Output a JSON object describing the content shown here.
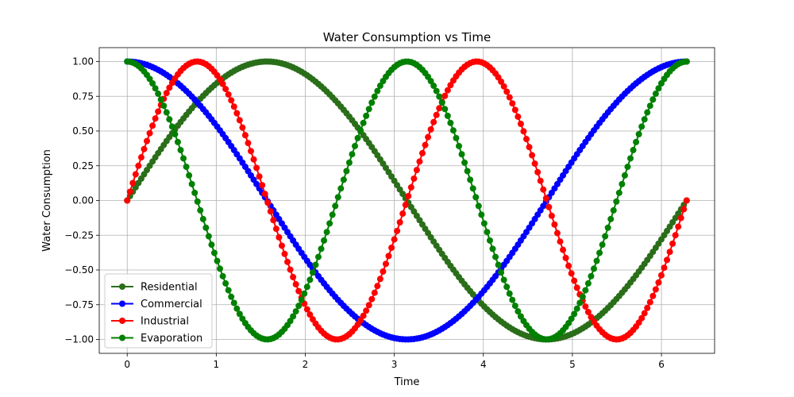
{
  "chart_data": {
    "type": "line",
    "title": "Water Consumption vs Time",
    "xlabel": "Time",
    "ylabel": "Water Consumption",
    "xlim": [
      -0.314,
      6.597
    ],
    "ylim": [
      -1.1,
      1.1
    ],
    "x_ticks": [
      0,
      1,
      2,
      3,
      4,
      5,
      6
    ],
    "x_tick_labels": [
      "0",
      "1",
      "2",
      "3",
      "4",
      "5",
      "6"
    ],
    "y_ticks": [
      -1.0,
      -0.75,
      -0.5,
      -0.25,
      0.0,
      0.25,
      0.5,
      0.75,
      1.0
    ],
    "y_tick_labels": [
      "−1.00",
      "−0.75",
      "−0.50",
      "−0.25",
      "0.00",
      "0.25",
      "0.50",
      "0.75",
      "1.00"
    ],
    "grid": true,
    "legend_position": "lower left",
    "x_range": [
      0,
      6.2832
    ],
    "num_points": 200,
    "series": [
      {
        "name": "Residential",
        "function": "sin(x)",
        "color": "#2a6e1a",
        "marker": "circle"
      },
      {
        "name": "Commercial",
        "function": "cos(x)",
        "color": "#0000ff",
        "marker": "circle"
      },
      {
        "name": "Industrial",
        "function": "sin(2x)",
        "color": "#ff0000",
        "marker": "circle"
      },
      {
        "name": "Evaporation",
        "function": "cos(2x)",
        "color": "#008000",
        "marker": "circle"
      }
    ]
  }
}
